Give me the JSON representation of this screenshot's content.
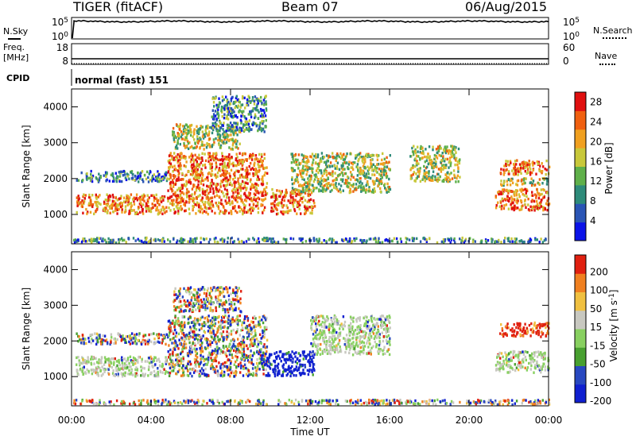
{
  "header": {
    "title": "TIGER (fitACF)",
    "beam": "Beam 07",
    "date": "06/Aug/2015"
  },
  "strips": {
    "nsky_label": "N.Sky",
    "nsearch_label": "N.Search",
    "noise_ticks_left": [
      "10^5",
      "10^0"
    ],
    "noise_ticks_right": [
      "10^5",
      "10^0"
    ],
    "freq_label_line1": "Freq.",
    "freq_label_line2": "[MHz]",
    "freq_ticks": [
      "18",
      "8"
    ],
    "nave_label": "Nave",
    "nave_ticks": [
      "60",
      "0"
    ],
    "cpid_label": "CPID",
    "cpid_value": "normal (fast) 151"
  },
  "chart_data": [
    {
      "type": "heatmap",
      "name": "power",
      "ylabel": "Slant Range [km]",
      "xlabel": "Time UT",
      "x_ticks": [
        "00:00",
        "04:00",
        "08:00",
        "12:00",
        "16:00",
        "20:00",
        "00:00"
      ],
      "x_range_hours": [
        0,
        24
      ],
      "y_ticks": [
        1000,
        2000,
        3000,
        4000
      ],
      "ylim": [
        180,
        4500
      ],
      "colorbar": {
        "label": "Power [dB]",
        "ticks": [
          4,
          8,
          12,
          16,
          20,
          24,
          28
        ],
        "range": [
          0,
          30
        ],
        "colors": [
          "#0b13e8",
          "#2a55b5",
          "#2e8b7a",
          "#5fb04a",
          "#c8c83a",
          "#f0a020",
          "#f06010",
          "#e01010"
        ]
      },
      "echo_regions": [
        {
          "t": [
            0.0,
            24.0
          ],
          "r": [
            200,
            340
          ],
          "level": "low",
          "note": "near-range ground clutter"
        },
        {
          "t": [
            0.2,
            4.8
          ],
          "r": [
            1000,
            1550
          ],
          "level": "high"
        },
        {
          "t": [
            0.2,
            4.8
          ],
          "r": [
            1900,
            2200
          ],
          "level": "low"
        },
        {
          "t": [
            4.8,
            9.8
          ],
          "r": [
            1000,
            2700
          ],
          "level": "high"
        },
        {
          "t": [
            5.0,
            8.5
          ],
          "r": [
            2800,
            3500
          ],
          "level": "mid"
        },
        {
          "t": [
            7.0,
            9.8
          ],
          "r": [
            3300,
            4300
          ],
          "level": "low"
        },
        {
          "t": [
            10.0,
            12.2
          ],
          "r": [
            1000,
            1700
          ],
          "level": "high"
        },
        {
          "t": [
            11.0,
            16.0
          ],
          "r": [
            1600,
            2700
          ],
          "level": "mid"
        },
        {
          "t": [
            17.0,
            19.5
          ],
          "r": [
            1900,
            2900
          ],
          "level": "mid"
        },
        {
          "t": [
            21.3,
            24.0
          ],
          "r": [
            1100,
            1700
          ],
          "level": "high"
        },
        {
          "t": [
            21.5,
            24.0
          ],
          "r": [
            2100,
            2500
          ],
          "level": "high"
        },
        {
          "t": [
            21.5,
            24.0
          ],
          "r": [
            1800,
            2000
          ],
          "level": "mid"
        }
      ]
    },
    {
      "type": "heatmap",
      "name": "velocity",
      "ylabel": "Slant Range [km]",
      "xlabel": "Time UT",
      "x_ticks": [
        "00:00",
        "04:00",
        "08:00",
        "12:00",
        "16:00",
        "20:00",
        "00:00"
      ],
      "x_range_hours": [
        0,
        24
      ],
      "y_ticks": [
        1000,
        2000,
        3000,
        4000
      ],
      "ylim": [
        180,
        4500
      ],
      "colorbar": {
        "label": "Velocity [m s^-1]",
        "ticks": [
          200,
          100,
          50,
          15,
          -15,
          -50,
          -100,
          -200
        ],
        "colors": [
          "#1020d0",
          "#2848c0",
          "#48a030",
          "#88d060",
          "#c8c8c0",
          "#f0c040",
          "#f08020",
          "#e02010"
        ]
      },
      "echo_regions": [
        {
          "t": [
            0.0,
            24.0
          ],
          "r": [
            200,
            340
          ],
          "level": "mixed"
        },
        {
          "t": [
            0.2,
            4.8
          ],
          "r": [
            1000,
            1550
          ],
          "level": "ground"
        },
        {
          "t": [
            0.2,
            4.8
          ],
          "r": [
            1900,
            2200
          ],
          "level": "mixed"
        },
        {
          "t": [
            4.8,
            9.8
          ],
          "r": [
            1000,
            2700
          ],
          "level": "mixed"
        },
        {
          "t": [
            5.0,
            8.5
          ],
          "r": [
            2800,
            3500
          ],
          "level": "mixed"
        },
        {
          "t": [
            9.5,
            12.2
          ],
          "r": [
            1000,
            1700
          ],
          "level": "toward"
        },
        {
          "t": [
            12.0,
            16.0
          ],
          "r": [
            1600,
            2700
          ],
          "level": "ground"
        },
        {
          "t": [
            21.3,
            24.0
          ],
          "r": [
            1100,
            1700
          ],
          "level": "ground"
        },
        {
          "t": [
            21.5,
            24.0
          ],
          "r": [
            2100,
            2500
          ],
          "level": "away"
        }
      ]
    }
  ]
}
